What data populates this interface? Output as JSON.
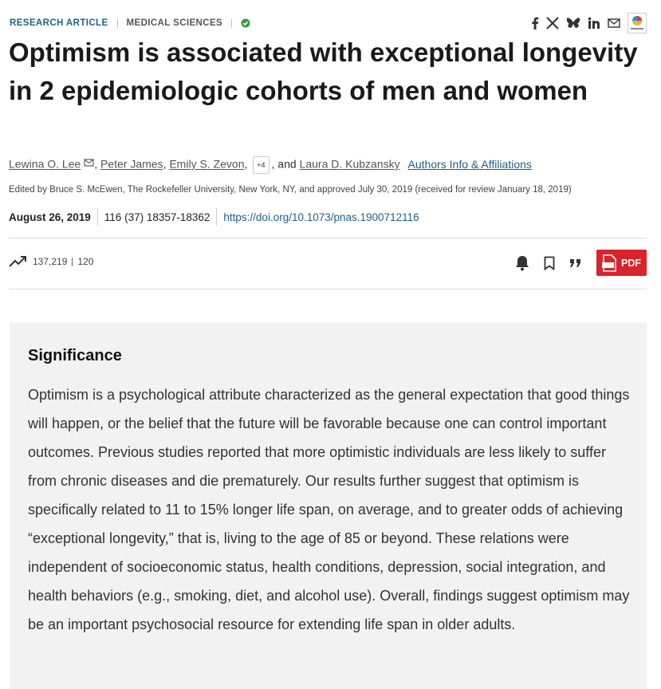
{
  "header": {
    "category": "RESEARCH ARTICLE",
    "subject": "MEDICAL SCIENCES"
  },
  "title": "Optimism is associated with exceptional longevity in 2 epidemiologic cohorts of men and women",
  "byline": {
    "authors": [
      "Lewina O. Lee",
      "Peter James",
      "Emily S. Zevon"
    ],
    "separator": ",",
    "more": "+4",
    "conjunction": ", and",
    "last_author": "Laura D. Kubzansky",
    "info_link": "Authors Info & Affiliations"
  },
  "edited_by": "Edited by Bruce S. McEwen, The Rockefeller University, New York, NY, and approved July 30, 2019 (received for review January 18, 2019)",
  "publication": {
    "date": "August 26, 2019",
    "citation": "116 (37) 18357-18362",
    "doi": "https://doi.org/10.1073/pnas.1900712116"
  },
  "metrics": {
    "views": "137,219",
    "citations": "120"
  },
  "actions": {
    "pdf": "PDF"
  },
  "significance": {
    "heading": "Significance",
    "text": "Optimism is a psychological attribute characterized as the general expectation that good things will happen, or the belief that the future will be favorable because one can control important outcomes. Previous studies reported that more optimistic individuals are less likely to suffer from chronic diseases and die prematurely. Our results further suggest that optimism is specifically related to 11 to 15% longer life span, on average, and to greater odds of achieving “exceptional longevity,” that is, living to the age of 85 or beyond. These relations were independent of socioeconomic status, health conditions, depression, social integration, and health behaviors (e.g., smoking, diet, and alcohol use). Overall, findings suggest optimism may be an important psychosocial resource for extending life span in older adults."
  }
}
